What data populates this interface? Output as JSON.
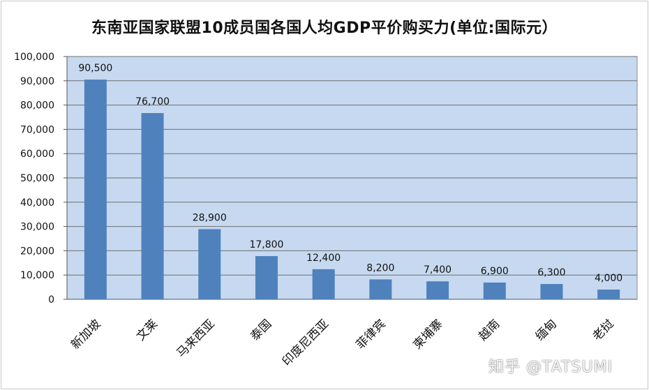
{
  "chart_data": {
    "type": "bar",
    "title": "东南亚国家联盟10成员国各国人均GDP平价购买力(单位:国际元）",
    "categories": [
      "新加坡",
      "文莱",
      "马来西亚",
      "泰国",
      "印度尼西亚",
      "菲律宾",
      "柬埔寨",
      "越南",
      "缅甸",
      "老挝"
    ],
    "values": [
      90500,
      76700,
      28900,
      17800,
      12400,
      8200,
      7400,
      6900,
      6300,
      4000
    ],
    "value_labels": [
      "90,500",
      "76,700",
      "28,900",
      "17,800",
      "12,400",
      "8,200",
      "7,400",
      "6,900",
      "6,300",
      "4,000"
    ],
    "y_ticks": [
      "0",
      "10,000",
      "20,000",
      "30,000",
      "40,000",
      "50,000",
      "60,000",
      "70,000",
      "80,000",
      "90,000",
      "100,000"
    ],
    "ylim": [
      0,
      100000
    ],
    "xlabel": "",
    "ylabel": "",
    "grid": true,
    "colors": {
      "bar": "#4f81bd",
      "plot_bg": "#c6d9f0",
      "grid": "#6f6f6f"
    }
  },
  "watermark": "知乎 @TATSUMI"
}
